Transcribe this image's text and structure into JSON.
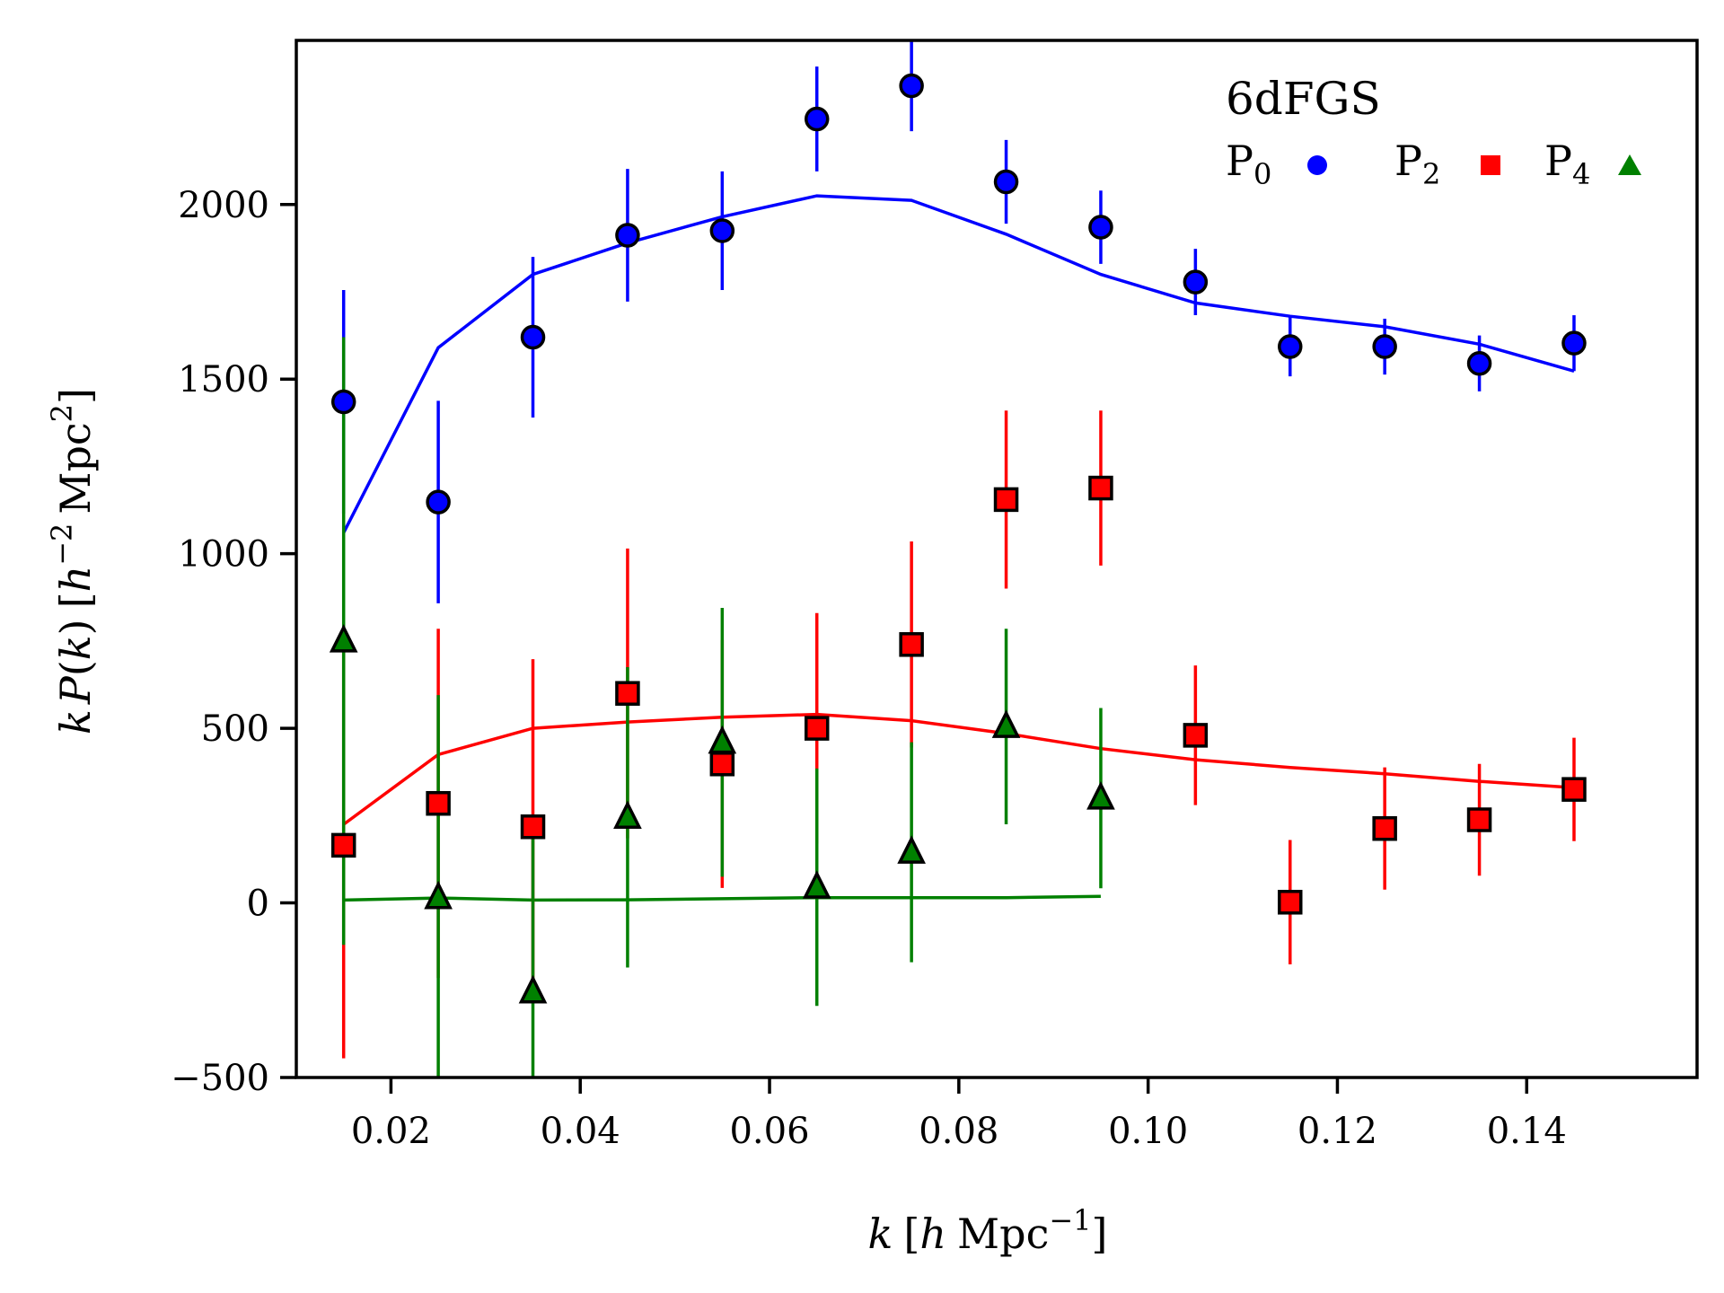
{
  "chart_data": {
    "type": "scatter",
    "title": "",
    "xlabel": "k [h Mpc^-1]",
    "xlabel_parts": {
      "k": "k",
      "open_bracket": "[",
      "h": "h",
      "unit": "Mpc",
      "exponent": "−1",
      "close_bracket": "]"
    },
    "ylabel": "kP(k) [h^-2 Mpc^2]",
    "ylabel_parts": {
      "k": "k",
      "P": "P",
      "paren_open": "(",
      "k_inner": "k",
      "paren_close": ")",
      "open_bracket": "[",
      "h": "h",
      "h_exponent": "−2",
      "unit": "Mpc",
      "unit_exponent": "2",
      "close_bracket": "]"
    },
    "xlim": [
      0.01,
      0.158
    ],
    "ylim": [
      -500,
      2470
    ],
    "xticks": [
      0.02,
      0.04,
      0.06,
      0.08,
      0.1,
      0.12,
      0.14
    ],
    "xtick_labels": [
      "0.02",
      "0.04",
      "0.06",
      "0.08",
      "0.10",
      "0.12",
      "0.14"
    ],
    "yticks": [
      -500,
      0,
      500,
      1000,
      1500,
      2000
    ],
    "ytick_labels": [
      "−500",
      "0",
      "500",
      "1000",
      "1500",
      "2000"
    ],
    "legend": {
      "title": "6dFGS",
      "position": "top-right",
      "entries": [
        {
          "label": "P",
          "subscript": "0",
          "marker": "circle",
          "color": "#0000ff"
        },
        {
          "label": "P",
          "subscript": "2",
          "marker": "square",
          "color": "#ff0000"
        },
        {
          "label": "P",
          "subscript": "4",
          "marker": "triangle",
          "color": "#008000"
        }
      ]
    },
    "series": [
      {
        "name": "P0",
        "color": "#0000ff",
        "marker": "circle",
        "points": [
          {
            "x": 0.015,
            "y": 1435,
            "err": 320
          },
          {
            "x": 0.025,
            "y": 1148,
            "err": 290
          },
          {
            "x": 0.035,
            "y": 1620,
            "err": 230
          },
          {
            "x": 0.045,
            "y": 1912,
            "err": 190
          },
          {
            "x": 0.055,
            "y": 1925,
            "err": 170
          },
          {
            "x": 0.065,
            "y": 2245,
            "err": 150
          },
          {
            "x": 0.075,
            "y": 2340,
            "err": 130
          },
          {
            "x": 0.085,
            "y": 2065,
            "err": 120
          },
          {
            "x": 0.095,
            "y": 1935,
            "err": 105
          },
          {
            "x": 0.105,
            "y": 1778,
            "err": 95
          },
          {
            "x": 0.115,
            "y": 1593,
            "err": 85
          },
          {
            "x": 0.125,
            "y": 1593,
            "err": 80
          },
          {
            "x": 0.135,
            "y": 1545,
            "err": 80
          },
          {
            "x": 0.145,
            "y": 1603,
            "err": 80
          }
        ],
        "model": {
          "x": [
            0.015,
            0.025,
            0.035,
            0.045,
            0.055,
            0.065,
            0.075,
            0.085,
            0.095,
            0.105,
            0.115,
            0.125,
            0.135,
            0.145
          ],
          "y": [
            1060,
            1590,
            1800,
            1890,
            1965,
            2025,
            2012,
            1915,
            1800,
            1718,
            1680,
            1650,
            1600,
            1523
          ]
        }
      },
      {
        "name": "P2",
        "color": "#ff0000",
        "marker": "square",
        "points": [
          {
            "x": 0.015,
            "y": 165,
            "err": 610
          },
          {
            "x": 0.025,
            "y": 285,
            "err": 500
          },
          {
            "x": 0.035,
            "y": 218,
            "err": 480
          },
          {
            "x": 0.045,
            "y": 600,
            "err": 415
          },
          {
            "x": 0.055,
            "y": 398,
            "err": 355
          },
          {
            "x": 0.065,
            "y": 500,
            "err": 330
          },
          {
            "x": 0.075,
            "y": 740,
            "err": 295
          },
          {
            "x": 0.085,
            "y": 1155,
            "err": 255
          },
          {
            "x": 0.095,
            "y": 1188,
            "err": 222
          },
          {
            "x": 0.105,
            "y": 480,
            "err": 200
          },
          {
            "x": 0.115,
            "y": 2,
            "err": 178
          },
          {
            "x": 0.125,
            "y": 213,
            "err": 175
          },
          {
            "x": 0.135,
            "y": 238,
            "err": 160
          },
          {
            "x": 0.145,
            "y": 325,
            "err": 148
          }
        ],
        "model": {
          "x": [
            0.015,
            0.025,
            0.035,
            0.045,
            0.055,
            0.065,
            0.075,
            0.085,
            0.095,
            0.105,
            0.115,
            0.125,
            0.135,
            0.145
          ],
          "y": [
            225,
            425,
            500,
            518,
            532,
            540,
            522,
            485,
            442,
            410,
            388,
            370,
            348,
            330
          ]
        }
      },
      {
        "name": "P4",
        "color": "#008000",
        "marker": "triangle",
        "points": [
          {
            "x": 0.015,
            "y": 750,
            "err": 870
          },
          {
            "x": 0.025,
            "y": 15,
            "err": 580
          },
          {
            "x": 0.035,
            "y": -255,
            "err": 480
          },
          {
            "x": 0.045,
            "y": 245,
            "err": 430
          },
          {
            "x": 0.055,
            "y": 460,
            "err": 385
          },
          {
            "x": 0.065,
            "y": 45,
            "err": 340
          },
          {
            "x": 0.075,
            "y": 145,
            "err": 315
          },
          {
            "x": 0.085,
            "y": 505,
            "err": 280
          },
          {
            "x": 0.095,
            "y": 300,
            "err": 258
          }
        ],
        "model": {
          "x": [
            0.015,
            0.025,
            0.035,
            0.045,
            0.055,
            0.065,
            0.075,
            0.085,
            0.095
          ],
          "y": [
            8,
            14,
            8,
            9,
            12,
            15,
            15,
            15,
            19
          ]
        }
      }
    ]
  }
}
